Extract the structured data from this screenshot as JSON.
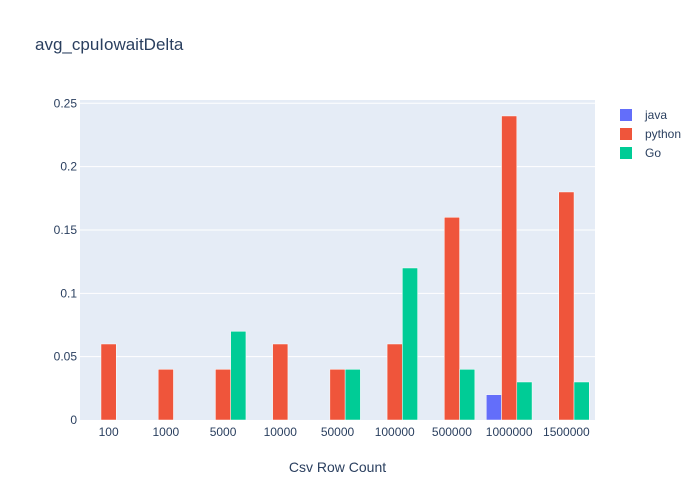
{
  "chart_data": {
    "type": "bar",
    "title": "avg_cpuIowaitDelta",
    "xlabel": "Csv Row Count",
    "ylabel": "",
    "categories": [
      "100",
      "1000",
      "5000",
      "10000",
      "50000",
      "100000",
      "500000",
      "1000000",
      "1500000"
    ],
    "series": [
      {
        "name": "java",
        "color": "#636efa",
        "values": [
          0,
          0,
          0,
          0,
          0,
          0,
          0,
          0.02,
          0
        ]
      },
      {
        "name": "python",
        "color": "#ef553b",
        "values": [
          0.06,
          0.04,
          0.04,
          0.06,
          0.04,
          0.06,
          0.16,
          0.24,
          0.18
        ]
      },
      {
        "name": "Go",
        "color": "#00cc96",
        "values": [
          0,
          0,
          0.07,
          0,
          0.04,
          0.12,
          0.04,
          0.03,
          0.03
        ]
      }
    ],
    "ylim": [
      0,
      0.2526
    ],
    "yticks": [
      0,
      0.05,
      0.1,
      0.15,
      0.2,
      0.25
    ],
    "ytick_labels": [
      "0",
      "0.05",
      "0.1",
      "0.15",
      "0.2",
      "0.25"
    ],
    "grid": true,
    "legend_position": "top-right",
    "plot_background": "#e5ecf6"
  }
}
